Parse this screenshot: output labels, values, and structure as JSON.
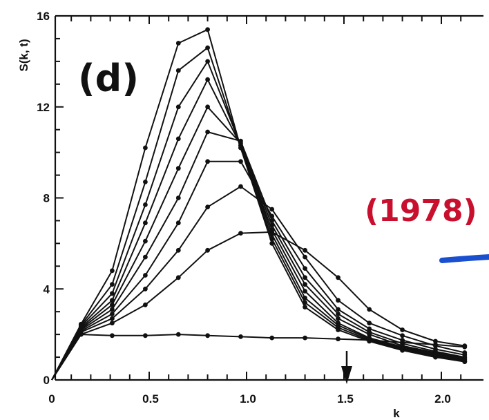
{
  "chart_data": {
    "type": "line",
    "panel_label": "(d)",
    "annotation": "(1978)",
    "xlabel": "k",
    "ylabel": "S(k, t)",
    "xlim": [
      0,
      2.15
    ],
    "ylim": [
      0,
      16
    ],
    "x_ticks": [
      "0",
      "0.5",
      "1.0",
      "1.5",
      "2.0"
    ],
    "y_ticks": [
      "0",
      "4",
      "8",
      "12",
      "16"
    ],
    "x_tick_values": [
      0,
      0.5,
      1.0,
      1.5,
      2.0
    ],
    "y_tick_values": [
      0,
      4,
      8,
      12,
      16
    ],
    "arrow_x": 1.5,
    "colors": {
      "ink": "#111111",
      "annotation": "#c8102e",
      "blue_mark": "#1a4fd0"
    },
    "x": [
      0,
      0.15,
      0.31,
      0.48,
      0.65,
      0.8,
      0.97,
      1.13,
      1.3,
      1.47,
      1.63,
      1.8,
      1.97,
      2.12
    ],
    "series": [
      {
        "values": [
          0,
          2.0,
          1.95,
          1.95,
          2.0,
          1.95,
          1.9,
          1.85,
          1.85,
          1.8,
          1.75,
          1.65,
          1.55,
          1.45
        ]
      },
      {
        "values": [
          0,
          2.0,
          2.5,
          3.3,
          4.5,
          5.7,
          6.45,
          6.5,
          5.7,
          4.5,
          3.1,
          2.2,
          1.7,
          1.5
        ]
      },
      {
        "values": [
          0,
          2.1,
          2.7,
          4.0,
          5.7,
          7.6,
          8.5,
          7.5,
          5.4,
          3.5,
          2.5,
          1.95,
          1.5,
          1.2
        ]
      },
      {
        "values": [
          0,
          2.15,
          2.9,
          4.6,
          6.9,
          9.6,
          9.6,
          7.2,
          4.9,
          3.1,
          2.25,
          1.75,
          1.35,
          1.1
        ]
      },
      {
        "values": [
          0,
          2.2,
          3.1,
          5.4,
          8.0,
          10.9,
          10.5,
          7.0,
          4.5,
          2.9,
          2.1,
          1.6,
          1.25,
          1.0
        ]
      },
      {
        "values": [
          0,
          2.25,
          3.3,
          6.1,
          9.3,
          12.0,
          10.4,
          6.8,
          4.2,
          2.7,
          2.0,
          1.5,
          1.2,
          0.95
        ]
      },
      {
        "values": [
          0,
          2.3,
          3.5,
          6.9,
          10.6,
          13.2,
          10.3,
          6.6,
          3.9,
          2.5,
          1.85,
          1.45,
          1.15,
          0.9
        ]
      },
      {
        "values": [
          0,
          2.35,
          3.8,
          7.7,
          12.0,
          14.0,
          10.3,
          6.4,
          3.6,
          2.4,
          1.8,
          1.4,
          1.1,
          0.85
        ]
      },
      {
        "values": [
          0,
          2.4,
          4.2,
          8.7,
          13.6,
          14.6,
          10.2,
          6.2,
          3.4,
          2.3,
          1.75,
          1.35,
          1.05,
          0.8
        ]
      },
      {
        "values": [
          0,
          2.45,
          4.8,
          10.2,
          14.8,
          15.4,
          10.2,
          6.0,
          3.2,
          2.2,
          1.7,
          1.3,
          1.0,
          0.8
        ]
      }
    ]
  }
}
